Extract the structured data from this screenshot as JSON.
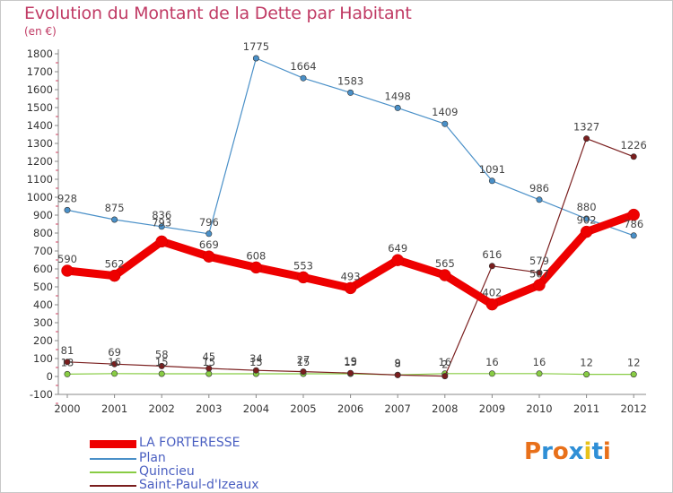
{
  "title": "Evolution du Montant de la Dette par Habitant",
  "subtitle": "(en €)",
  "logo": {
    "text": "Proxiti",
    "colors": [
      "#e8701a",
      "#2f8fd6",
      "#e8701a",
      "#2f8fd6",
      "#e8c21a",
      "#2f8fd6",
      "#e8701a"
    ]
  },
  "chart_data": {
    "type": "line",
    "title": "Evolution du Montant de la Dette par Habitant",
    "subtitle": "(en €)",
    "x": [
      "2000",
      "2001",
      "2002",
      "2003",
      "2004",
      "2005",
      "2006",
      "2007",
      "2008",
      "2009",
      "2010",
      "2011",
      "2012"
    ],
    "yticks": [
      -100,
      0,
      100,
      200,
      300,
      400,
      500,
      600,
      700,
      800,
      900,
      1000,
      1100,
      1200,
      1300,
      1400,
      1500,
      1600,
      1700,
      1800
    ],
    "ylim": [
      -100,
      1800
    ],
    "grid": false,
    "legend_position": "bottom-left",
    "series": [
      {
        "name": "LA FORTERESSE",
        "color": "#ee0000",
        "width": "thick",
        "values": [
          590,
          562,
          753,
          669,
          608,
          553,
          493,
          649,
          565,
          402,
          510,
          807,
          902
        ],
        "labels": [
          "590",
          "562",
          "",
          "669",
          "608",
          "553",
          "493",
          "649",
          "565",
          "402",
          "",
          "",
          ""
        ]
      },
      {
        "name": "Plan",
        "color": "#4a90c8",
        "width": "thin",
        "values": [
          928,
          875,
          836,
          796,
          1775,
          1664,
          1583,
          1498,
          1409,
          1091,
          986,
          880,
          786
        ],
        "labels": [
          "928",
          "875",
          "836",
          "796",
          "1775",
          "1664",
          "1583",
          "1498",
          "1409",
          "1091",
          "986",
          "880",
          "786"
        ]
      },
      {
        "name": "Quincieu",
        "color": "#88cc44",
        "width": "thin",
        "values": [
          13,
          16,
          15,
          15,
          15,
          15,
          15,
          9,
          16,
          16,
          16,
          12,
          12
        ],
        "labels": [
          "13",
          "16",
          "15",
          "15",
          "15",
          "15",
          "15",
          "9",
          "16",
          "16",
          "16",
          "12",
          "12"
        ]
      },
      {
        "name": "Saint-Paul-d'Izeaux",
        "color": "#7a1e1e",
        "width": "thin",
        "values": [
          81,
          69,
          58,
          45,
          34,
          27,
          19,
          8,
          2,
          616,
          579,
          1327,
          1226
        ],
        "labels": [
          "81",
          "69",
          "58",
          "45",
          "34",
          "27",
          "19",
          "8",
          "2",
          "616",
          "579",
          "1327",
          "1226"
        ]
      }
    ],
    "extra_labels": [
      "793",
      "507",
      "902"
    ]
  }
}
